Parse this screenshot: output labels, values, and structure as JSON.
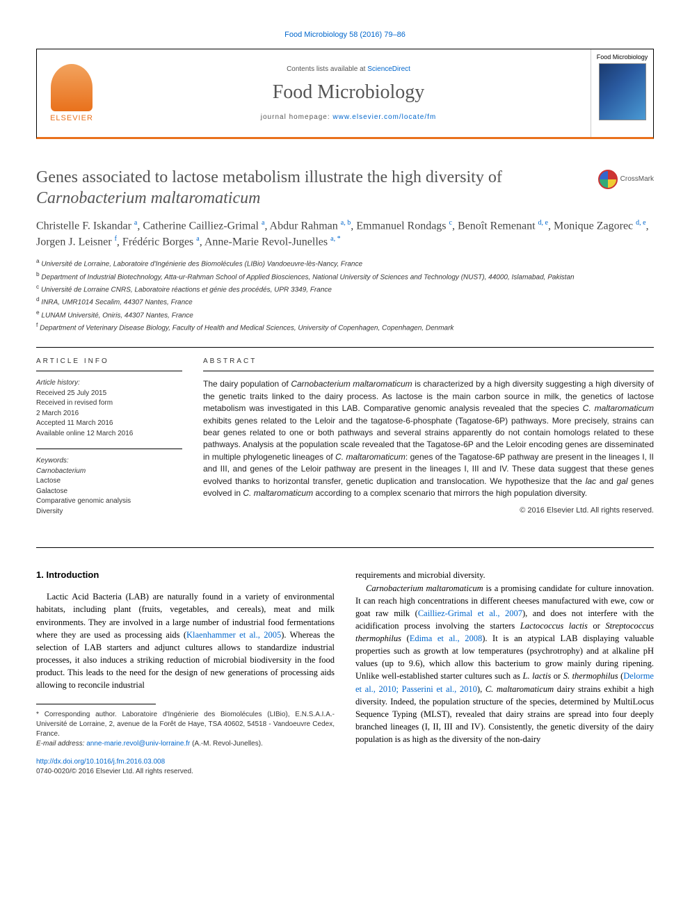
{
  "topCitation": "Food Microbiology 58 (2016) 79–86",
  "header": {
    "contentsPrefix": "Contents lists available at ",
    "contentsLink": "ScienceDirect",
    "journal": "Food Microbiology",
    "homepagePrefix": "journal homepage: ",
    "homepageLink": "www.elsevier.com/locate/fm",
    "publisher": "ELSEVIER",
    "coverLabel": "Food Microbiology"
  },
  "crossmark": "CrossMark",
  "title": {
    "plain": "Genes associated to lactose metabolism illustrate the high diversity of ",
    "italic": "Carnobacterium maltaromaticum"
  },
  "authorsHTML": "Christelle F. Iskandar <sup>a</sup>, Catherine Cailliez-Grimal <sup>a</sup>, Abdur Rahman <sup>a, b</sup>, Emmanuel Rondags <sup>c</sup>, Benoît Remenant <sup>d, e</sup>, Monique Zagorec <sup>d, e</sup>, Jorgen J. Leisner <sup>f</sup>, Frédéric Borges <sup>a</sup>, Anne-Marie Revol-Junelles <sup>a, *</sup>",
  "affiliations": [
    {
      "sup": "a",
      "text": "Université de Lorraine, Laboratoire d'Ingénierie des Biomolécules (LIBio) Vandoeuvre-lès-Nancy, France"
    },
    {
      "sup": "b",
      "text": "Department of Industrial Biotechnology, Atta-ur-Rahman School of Applied Biosciences, National University of Sciences and Technology (NUST), 44000, Islamabad, Pakistan"
    },
    {
      "sup": "c",
      "text": "Université de Lorraine CNRS, Laboratoire réactions et génie des procédés, UPR 3349, France"
    },
    {
      "sup": "d",
      "text": "INRA, UMR1014 Secalim, 44307 Nantes, France"
    },
    {
      "sup": "e",
      "text": "LUNAM Université, Oniris, 44307 Nantes, France"
    },
    {
      "sup": "f",
      "text": "Department of Veterinary Disease Biology, Faculty of Health and Medical Sciences, University of Copenhagen, Copenhagen, Denmark"
    }
  ],
  "infoHead": "ARTICLE INFO",
  "abstractHead": "ABSTRACT",
  "history": {
    "label": "Article history:",
    "received": "Received 25 July 2015",
    "revised1": "Received in revised form",
    "revised2": "2 March 2016",
    "accepted": "Accepted 11 March 2016",
    "online": "Available online 12 March 2016"
  },
  "keywords": {
    "label": "Keywords:",
    "list": [
      "Carnobacterium",
      "Lactose",
      "Galactose",
      "Comparative genomic analysis",
      "Diversity"
    ]
  },
  "abstractHTML": "The dairy population of <em>Carnobacterium maltaromaticum</em> is characterized by a high diversity suggesting a high diversity of the genetic traits linked to the dairy process. As lactose is the main carbon source in milk, the genetics of lactose metabolism was investigated in this LAB. Comparative genomic analysis revealed that the species <em>C. maltaromaticum</em> exhibits genes related to the Leloir and the tagatose-6-phosphate (Tagatose-6P) pathways. More precisely, strains can bear genes related to one or both pathways and several strains apparently do not contain homologs related to these pathways. Analysis at the population scale revealed that the Tagatose-6P and the Leloir encoding genes are disseminated in multiple phylogenetic lineages of <em>C. maltaromaticum</em>: genes of the Tagatose-6P pathway are present in the lineages I, II and III, and genes of the Leloir pathway are present in the lineages I, III and IV. These data suggest that these genes evolved thanks to horizontal transfer, genetic duplication and translocation. We hypothesize that the <em>lac</em> and <em>gal</em> genes evolved in <em>C. maltaromaticum</em> according to a complex scenario that mirrors the high population diversity.",
  "abstractCopyright": "© 2016 Elsevier Ltd. All rights reserved.",
  "introHead": "1. Introduction",
  "leftColHTML": "Lactic Acid Bacteria (LAB) are naturally found in a variety of environmental habitats, including plant (fruits, vegetables, and cereals), meat and milk environments. They are involved in a large number of industrial food fermentations where they are used as processing aids (<span class=\"cite\">Klaenhammer et al., 2005</span>). Whereas the selection of LAB starters and adjunct cultures allows to standardize industrial processes, it also induces a striking reduction of microbial biodiversity in the food product. This leads to the need for the design of new generations of processing aids allowing to reconcile industrial",
  "rightColTop": "requirements and microbial diversity.",
  "rightColHTML": "<em>Carnobacterium maltaromaticum</em> is a promising candidate for culture innovation. It can reach high concentrations in different cheeses manufactured with ewe, cow or goat raw milk (<span class=\"cite\">Cailliez-Grimal et al., 2007</span>), and does not interfere with the acidification process involving the starters <em>Lactococcus lactis</em> or <em>Streptococcus thermophilus</em> (<span class=\"cite\">Edima et al., 2008</span>). It is an atypical LAB displaying valuable properties such as growth at low temperatures (psychrotrophy) and at alkaline pH values (up to 9.6), which allow this bacterium to grow mainly during ripening. Unlike well-established starter cultures such as <em>L. lactis</em> or <em>S. thermophilus</em> (<span class=\"cite\">Delorme et al., 2010; Passerini et al., 2010</span>), <em>C. maltaromaticum</em> dairy strains exhibit a high diversity. Indeed, the population structure of the species, determined by MultiLocus Sequence Typing (MLST), revealed that dairy strains are spread into four deeply branched lineages (I, II, III and IV). Consistently, the genetic diversity of the dairy population is as high as the diversity of the non-dairy",
  "footnote": {
    "star": "* Corresponding author. Laboratoire d'Ingénierie des Biomolécules (LIBio), E.N.S.A.I.A.- Université de Lorraine, 2, avenue de la Forêt de Haye, TSA 40602, 54518 - Vandoeuvre Cedex, France.",
    "emailLabel": "E-mail address: ",
    "email": "anne-marie.revol@univ-lorraine.fr",
    "emailSuffix": " (A.-M. Revol-Junelles)."
  },
  "doi": {
    "link": "http://dx.doi.org/10.1016/j.fm.2016.03.008",
    "issn": "0740-0020/© 2016 Elsevier Ltd. All rights reserved."
  },
  "colors": {
    "accent": "#e9711c",
    "link": "#0066cc",
    "grayText": "#555555"
  }
}
